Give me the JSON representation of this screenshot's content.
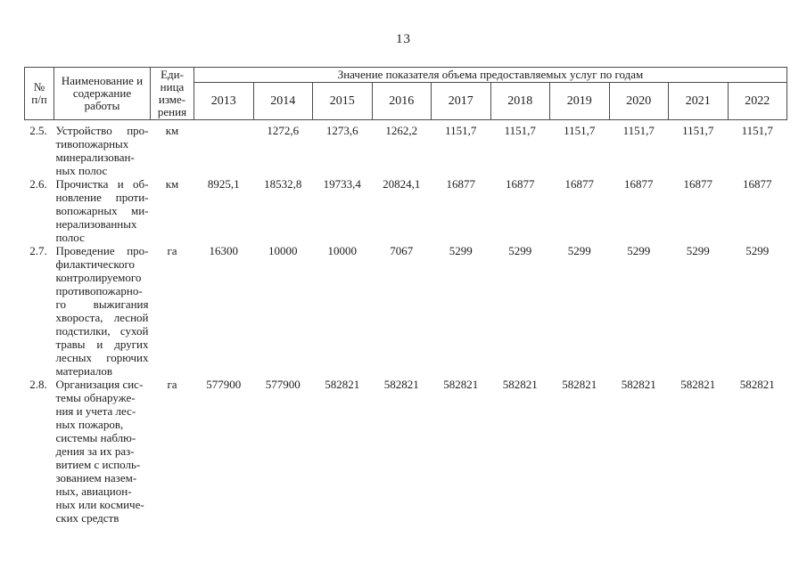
{
  "page": {
    "number": "13"
  },
  "table": {
    "headers": {
      "num_lines": [
        "№",
        "п/п"
      ],
      "name_lines": [
        "Наименование и",
        "содержание",
        "работы"
      ],
      "unit_lines": [
        "Еди-",
        "ница",
        "изме-",
        "рения"
      ],
      "span": "Значение показателя объема предоставляемых услуг по годам"
    },
    "years": [
      "2013",
      "2014",
      "2015",
      "2016",
      "2017",
      "2018",
      "2019",
      "2020",
      "2021",
      "2022"
    ],
    "rows": [
      {
        "num": "2.5.",
        "name_lines": [
          "Устройство про-",
          "тивопожарных",
          "минерализован-",
          "ных полос"
        ],
        "unit": "км",
        "values": [
          "",
          "1272,6",
          "1273,6",
          "1262,2",
          "1151,7",
          "1151,7",
          "1151,7",
          "1151,7",
          "1151,7",
          "1151,7"
        ]
      },
      {
        "num": "2.6.",
        "name_lines": [
          "Прочистка и об-",
          "новление проти-",
          "вопожарных ми-",
          "нерализованных",
          "полос"
        ],
        "unit": "км",
        "values": [
          "8925,1",
          "18532,8",
          "19733,4",
          "20824,1",
          "16877",
          "16877",
          "16877",
          "16877",
          "16877",
          "16877"
        ]
      },
      {
        "num": "2.7.",
        "name_lines": [
          "Проведение про-",
          "филактического",
          "контролируемого",
          "противопожарно-",
          "го выжигания",
          "хвороста, лесной",
          "подстилки, сухой",
          "травы и других",
          "лесных горючих",
          "материалов"
        ],
        "unit": "га",
        "values": [
          "16300",
          "10000",
          "10000",
          "7067",
          "5299",
          "5299",
          "5299",
          "5299",
          "5299",
          "5299"
        ]
      },
      {
        "num": "2.8.",
        "name_lines": [
          "Организация сис-",
          "темы обнаруже-",
          "ния и учета лес-",
          "ных пожаров,",
          "системы наблю-",
          "дения за их раз-",
          "витием с исполь-",
          "зованием назем-",
          "ных, авиацион-",
          "ных или космиче-",
          "ских средств"
        ],
        "unit": "га",
        "values": [
          "577900",
          "577900",
          "582821",
          "582821",
          "582821",
          "582821",
          "582821",
          "582821",
          "582821",
          "582821"
        ]
      }
    ]
  }
}
